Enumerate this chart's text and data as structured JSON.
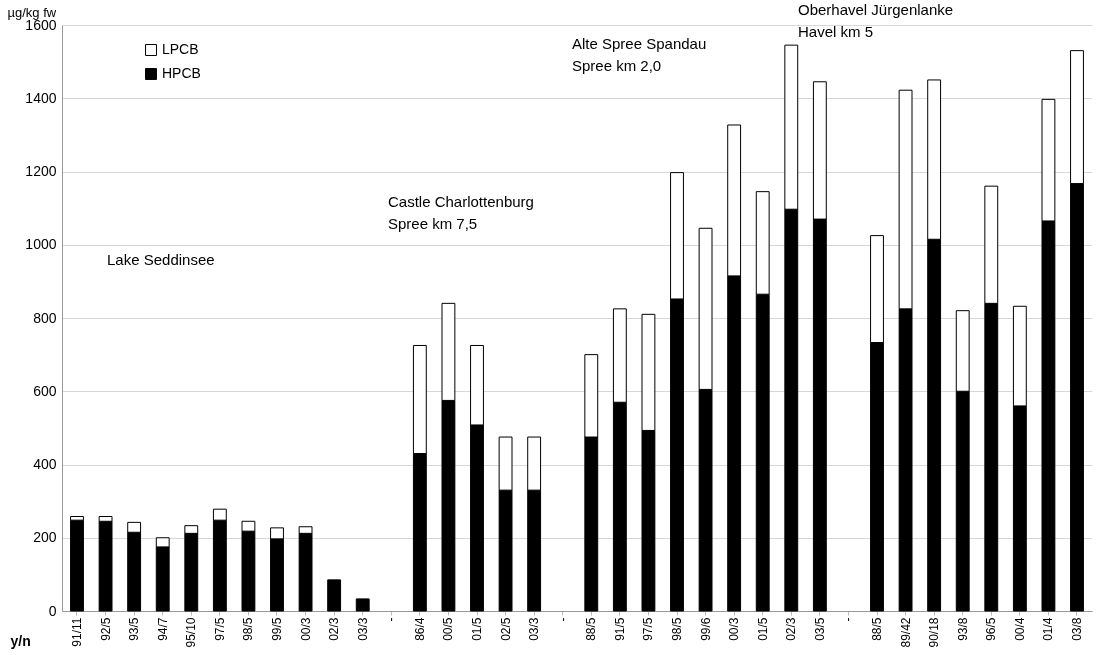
{
  "chart_data": {
    "type": "bar",
    "stacked": true,
    "ylabel": "µg/kg fw",
    "xlabel": "y/n",
    "categories": [
      "91/11",
      "92/5",
      "93/5",
      "94/7",
      "95/10",
      "97/5",
      "98/5",
      "99/5",
      "00/3",
      "02/3",
      "03/3",
      "-",
      "86/4",
      "00/5",
      "01/5",
      "02/5",
      "03/3",
      "-",
      "88/5",
      "91/5",
      "97/5",
      "98/5",
      "99/6",
      "00/3",
      "01/5",
      "02/3",
      "03/5",
      "-",
      "88/5",
      "89/42",
      "90/18",
      "93/8",
      "96/5",
      "00/4",
      "01/4",
      "03/8"
    ],
    "series": [
      {
        "name": "HPCB",
        "color": "#000000",
        "values": [
          248,
          245,
          215,
          175,
          212,
          248,
          218,
          197,
          212,
          85,
          33,
          null,
          430,
          575,
          508,
          330,
          330,
          null,
          475,
          570,
          493,
          852,
          605,
          915,
          865,
          1097,
          1070,
          null,
          733,
          825,
          1015,
          600,
          840,
          560,
          1065,
          1167
        ]
      },
      {
        "name": "LPCB",
        "color": "#ffffff",
        "values": [
          10,
          13,
          27,
          25,
          21,
          30,
          27,
          30,
          18,
          null,
          null,
          null,
          295,
          265,
          217,
          145,
          145,
          null,
          225,
          255,
          317,
          345,
          440,
          412,
          280,
          448,
          375,
          null,
          292,
          597,
          435,
          220,
          320,
          272,
          332,
          363
        ]
      }
    ],
    "ylim": [
      0,
      1600
    ],
    "yticks": [
      0,
      200,
      400,
      600,
      800,
      1000,
      1200,
      1400,
      1600
    ],
    "grid": "y",
    "legend": "top left",
    "annotations": [
      "Lake Seddinsee",
      "Castle Charlottenburg\nSpree km 7,5",
      "Alte Spree Spandau\nSpree km 2,0",
      "Oberhavel Jürgenlanke\nHavel km 5"
    ]
  }
}
